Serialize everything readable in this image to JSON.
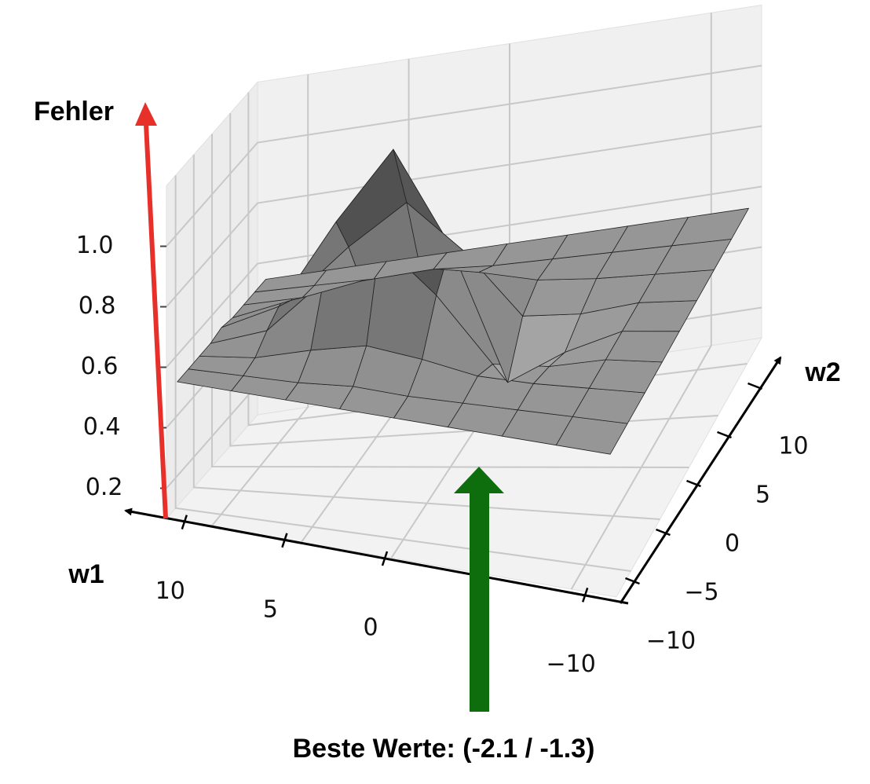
{
  "chart_data": {
    "type": "surface",
    "z_label": "Fehler",
    "x_label": "w1",
    "y_label": "w2",
    "annotation": "Beste Werte: (-2.1 / -1.3)",
    "x": [
      -12,
      -9,
      -6,
      -3,
      0,
      3,
      6,
      9,
      12
    ],
    "y": [
      -12,
      -9,
      -6,
      -3,
      0,
      3,
      6,
      9,
      12
    ],
    "z": [
      [
        0.55,
        0.55,
        0.55,
        0.55,
        0.55,
        0.55,
        0.55,
        0.55,
        0.55
      ],
      [
        0.55,
        0.55,
        0.55,
        0.55,
        0.55,
        0.55,
        0.55,
        0.55,
        0.55
      ],
      [
        0.55,
        0.55,
        0.55,
        0.52,
        0.48,
        0.52,
        0.55,
        0.55,
        0.55
      ],
      [
        0.55,
        0.55,
        0.56,
        0.52,
        0.38,
        0.52,
        0.56,
        0.55,
        0.55
      ],
      [
        0.55,
        0.55,
        0.6,
        0.74,
        0.83,
        0.74,
        0.6,
        0.55,
        0.55
      ],
      [
        0.55,
        0.56,
        0.63,
        0.91,
        1.15,
        0.91,
        0.63,
        0.56,
        0.55
      ],
      [
        0.55,
        0.55,
        0.6,
        0.77,
        0.91,
        0.77,
        0.6,
        0.55,
        0.55
      ],
      [
        0.55,
        0.55,
        0.56,
        0.6,
        0.63,
        0.6,
        0.56,
        0.55,
        0.55
      ],
      [
        0.55,
        0.55,
        0.55,
        0.55,
        0.56,
        0.55,
        0.55,
        0.55,
        0.55
      ]
    ],
    "xlim": [
      -12.5,
      12.5
    ],
    "ylim": [
      -12.5,
      12.5
    ],
    "zlim": [
      0.1,
      1.2
    ],
    "xticks": [
      10,
      5,
      0,
      {
        "value": -10,
        "label": "−10"
      }
    ],
    "yticks": [
      {
        "value": -10,
        "label": "−10"
      },
      {
        "value": -5,
        "label": "−5"
      },
      0,
      5,
      10
    ],
    "zticks": [
      0.2,
      0.4,
      0.6,
      0.8,
      {
        "value": 1,
        "label": "1.0"
      }
    ],
    "grid": true
  }
}
